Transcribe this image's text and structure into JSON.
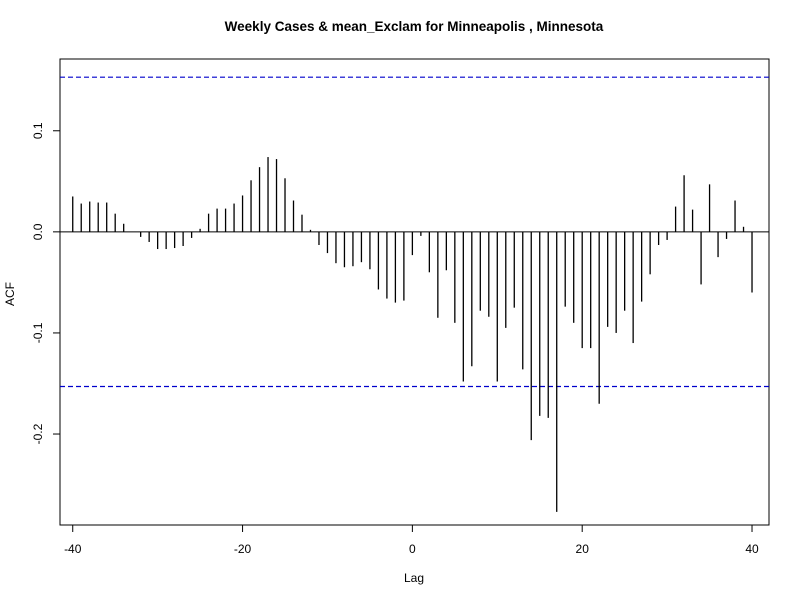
{
  "chart_data": {
    "type": "bar",
    "title": "Weekly Cases & mean_Exclam for Minneapolis , Minnesota",
    "xlabel": "Lag",
    "ylabel": "ACF",
    "xlim": [
      -41.5,
      42
    ],
    "ylim": [
      -0.29,
      0.171
    ],
    "x_ticks": [
      -40,
      -20,
      0,
      20,
      40
    ],
    "y_ticks": [
      -0.2,
      -0.1,
      0.0,
      0.1
    ],
    "y_tick_labels": [
      "-0.2",
      "-0.1",
      "0.0",
      "0.1"
    ],
    "confidence_bound": 0.153,
    "colors": {
      "bars": "#000000",
      "bounds": "#0000cc",
      "zero_line": "#000000"
    },
    "lags": [
      -40,
      -39,
      -38,
      -37,
      -36,
      -35,
      -34,
      -33,
      -32,
      -31,
      -30,
      -29,
      -28,
      -27,
      -26,
      -25,
      -24,
      -23,
      -22,
      -21,
      -20,
      -19,
      -18,
      -17,
      -16,
      -15,
      -14,
      -13,
      -12,
      -11,
      -10,
      -9,
      -8,
      -7,
      -6,
      -5,
      -4,
      -3,
      -2,
      -1,
      0,
      1,
      2,
      3,
      4,
      5,
      6,
      7,
      8,
      9,
      10,
      11,
      12,
      13,
      14,
      15,
      16,
      17,
      18,
      19,
      20,
      21,
      22,
      23,
      24,
      25,
      26,
      27,
      28,
      29,
      30,
      31,
      32,
      33,
      34,
      35,
      36,
      37,
      38,
      39,
      40
    ],
    "values": [
      0.035,
      0.028,
      0.03,
      0.029,
      0.029,
      0.018,
      0.008,
      0.0,
      -0.005,
      -0.01,
      -0.017,
      -0.017,
      -0.016,
      -0.014,
      -0.006,
      0.003,
      0.018,
      0.023,
      0.023,
      0.028,
      0.036,
      0.051,
      0.064,
      0.074,
      0.072,
      0.053,
      0.031,
      0.017,
      0.002,
      -0.013,
      -0.021,
      -0.031,
      -0.035,
      -0.034,
      -0.03,
      -0.037,
      -0.057,
      -0.066,
      -0.07,
      -0.068,
      -0.023,
      -0.004,
      -0.04,
      -0.085,
      -0.038,
      -0.09,
      -0.148,
      -0.133,
      -0.078,
      -0.084,
      -0.148,
      -0.095,
      -0.075,
      -0.136,
      -0.206,
      -0.182,
      -0.184,
      -0.277,
      -0.074,
      -0.09,
      -0.115,
      -0.115,
      -0.17,
      -0.094,
      -0.1,
      -0.078,
      -0.11,
      -0.069,
      -0.042,
      -0.013,
      -0.008,
      0.025,
      0.056,
      0.022,
      -0.052,
      0.047,
      -0.025,
      -0.007,
      0.031,
      0.005,
      -0.06
    ]
  }
}
